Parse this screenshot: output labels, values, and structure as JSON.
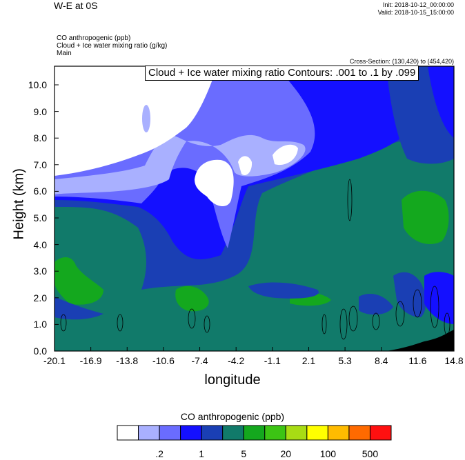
{
  "header": {
    "title": "W-E at 0S",
    "init": "Init: 2018-10-12_00:00:00",
    "valid": "Valid: 2018-10-15_15:00:00",
    "field1": "CO anthropogenic   (ppb)",
    "field2": "Cloud + Ice water mixing ratio   (g/kg)",
    "field3": "Main",
    "cross_section": "Cross-Section: (130,420) to (454,420)",
    "contours": "Cloud + Ice water mixing ratio Contours: .001 to .1 by .099"
  },
  "chart_data": {
    "type": "heatmap",
    "xlabel": "longitude",
    "ylabel": "Height (km)",
    "xlim": [
      -20.1,
      14.8
    ],
    "ylim": [
      0.0,
      10.7
    ],
    "x_ticks": [
      "-20.1",
      "-16.9",
      "-13.8",
      "-10.6",
      "-7.4",
      "-4.2",
      "-1.1",
      "2.1",
      "5.3",
      "8.4",
      "11.6",
      "14.8"
    ],
    "y_ticks": [
      "0.0",
      "1.0",
      "2.0",
      "3.0",
      "4.0",
      "5.0",
      "6.0",
      "7.0",
      "8.0",
      "9.0",
      "10.0"
    ],
    "colorbar": {
      "title": "CO anthropogenic  (ppb)",
      "colors": [
        "#ffffff",
        "#a9b0ff",
        "#6a6cff",
        "#1410ff",
        "#1a3fb4",
        "#117a6a",
        "#14a81e",
        "#3cc414",
        "#a8dc14",
        "#ffff00",
        "#ffbb00",
        "#ff6a00",
        "#ff1010"
      ],
      "labels": [
        ".2",
        "1",
        "5",
        "20",
        "100",
        "500"
      ]
    },
    "shaded_regions": [
      {
        "level": "5",
        "description": "teal background (lower atmosphere and east)"
      },
      {
        "level": "0.2",
        "description": "white upper-left and cloud pockets"
      }
    ]
  }
}
